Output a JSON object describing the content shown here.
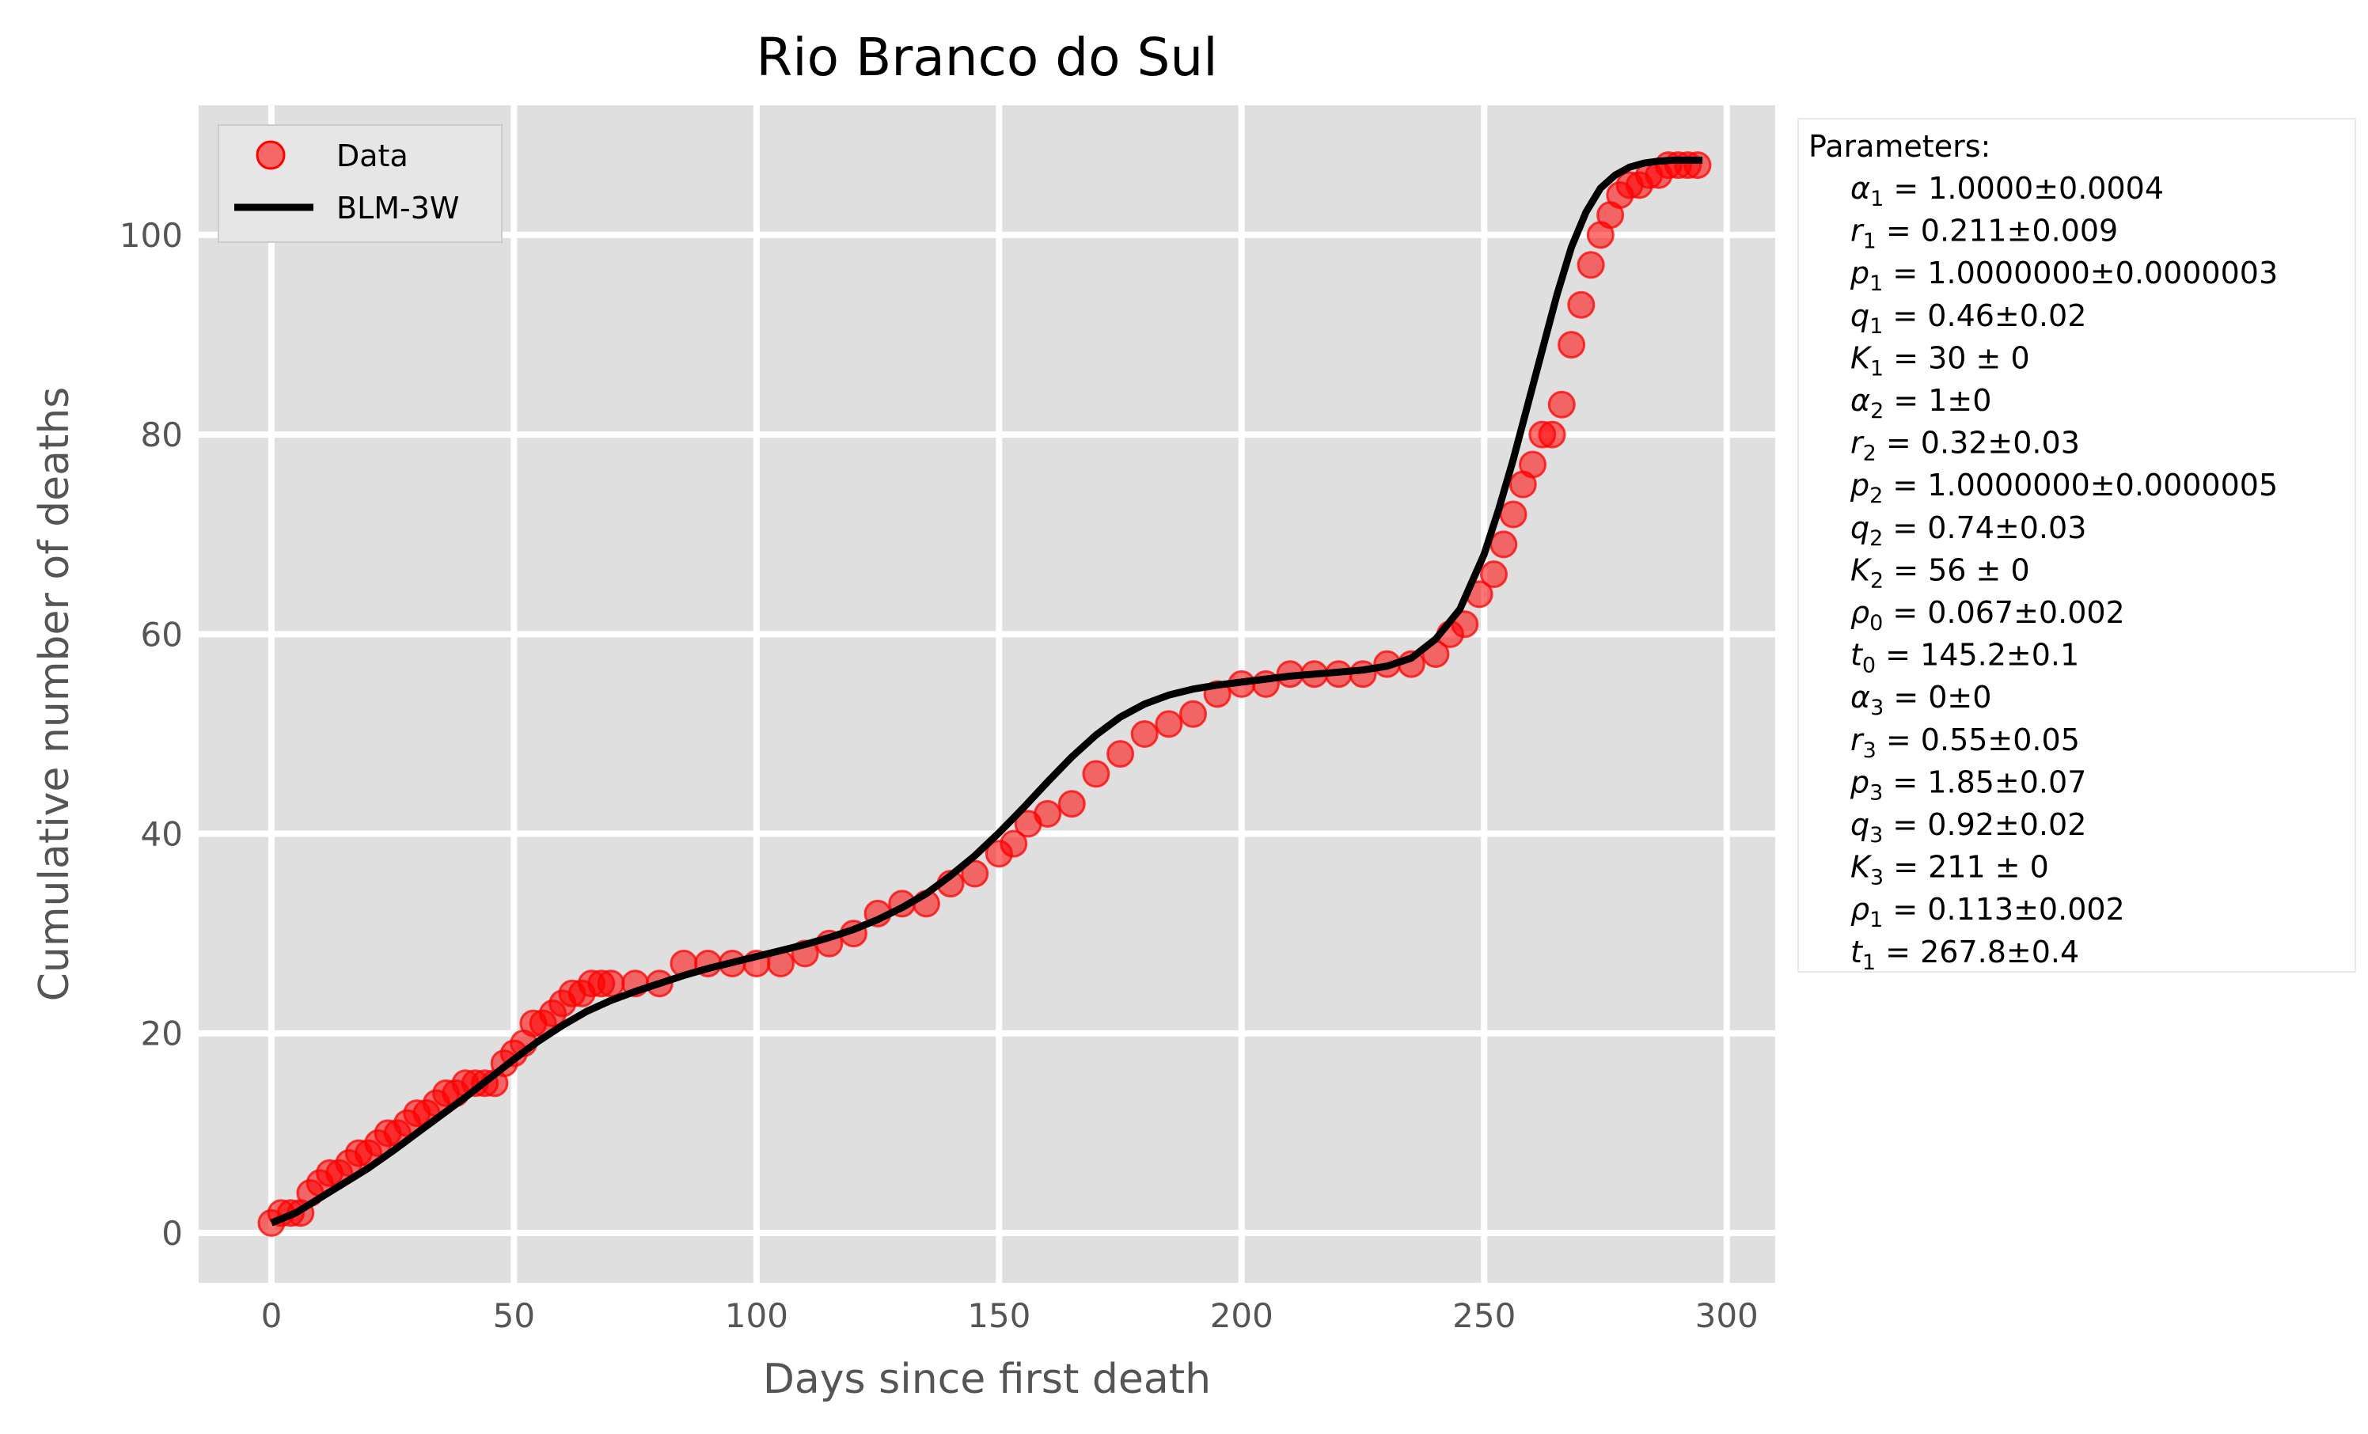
{
  "colors": {
    "plot_bg": "#dfdfdf",
    "grid": "#ffffff",
    "data_marker": "#ff0000",
    "fit_line": "#000000",
    "label": "#555555"
  },
  "chart_data": {
    "type": "scatter",
    "title": "Rio Branco do Sul",
    "xlabel": "Days since first death",
    "ylabel": "Cumulative number of deaths",
    "xlim": [
      -15,
      310
    ],
    "ylim": [
      -5,
      113
    ],
    "xticks": [
      0,
      50,
      100,
      150,
      200,
      250,
      300
    ],
    "yticks": [
      0,
      20,
      40,
      60,
      80,
      100
    ],
    "grid": true,
    "legend_placement": "top-left",
    "legend": [
      {
        "label": "Data",
        "marker": "circle",
        "color": "#ff0000"
      },
      {
        "label": "BLM-3W",
        "marker": "line",
        "color": "#000000"
      }
    ],
    "series": [
      {
        "name": "Data",
        "kind": "points",
        "x": [
          0,
          2,
          4,
          6,
          8,
          10,
          12,
          14,
          16,
          18,
          20,
          22,
          24,
          26,
          28,
          30,
          32,
          34,
          36,
          38,
          40,
          42,
          44,
          46,
          48,
          50,
          52,
          54,
          56,
          58,
          60,
          62,
          64,
          66,
          68,
          70,
          75,
          80,
          85,
          90,
          95,
          100,
          105,
          110,
          115,
          120,
          125,
          130,
          135,
          140,
          145,
          150,
          153,
          156,
          160,
          165,
          170,
          175,
          180,
          185,
          190,
          195,
          200,
          205,
          210,
          215,
          220,
          225,
          230,
          235,
          240,
          243,
          246,
          249,
          252,
          254,
          256,
          258,
          260,
          262,
          264,
          266,
          268,
          270,
          272,
          274,
          276,
          278,
          280,
          282,
          284,
          286,
          288,
          290,
          292,
          294
        ],
        "y": [
          1,
          2,
          2,
          2,
          4,
          5,
          6,
          6,
          7,
          8,
          8,
          9,
          10,
          10,
          11,
          12,
          12,
          13,
          14,
          14,
          15,
          15,
          15,
          15,
          17,
          18,
          19,
          21,
          21,
          22,
          23,
          24,
          24,
          25,
          25,
          25,
          25,
          25,
          27,
          27,
          27,
          27,
          27,
          28,
          29,
          30,
          32,
          33,
          33,
          35,
          36,
          38,
          39,
          41,
          42,
          43,
          46,
          48,
          50,
          51,
          52,
          54,
          55,
          55,
          56,
          56,
          56,
          56,
          57,
          57,
          58,
          60,
          61,
          64,
          66,
          69,
          72,
          75,
          77,
          80,
          80,
          83,
          89,
          93,
          97,
          100,
          102,
          104,
          105,
          105,
          106,
          106,
          107,
          107,
          107,
          107
        ]
      },
      {
        "name": "BLM-3W",
        "kind": "line",
        "x": [
          0,
          5,
          10,
          15,
          20,
          25,
          30,
          35,
          40,
          45,
          50,
          55,
          60,
          65,
          70,
          75,
          80,
          85,
          90,
          95,
          100,
          105,
          110,
          115,
          120,
          125,
          130,
          135,
          140,
          145,
          150,
          155,
          160,
          165,
          170,
          175,
          180,
          185,
          190,
          195,
          200,
          205,
          210,
          215,
          220,
          225,
          230,
          235,
          240,
          245,
          250,
          253,
          256,
          259,
          262,
          265,
          268,
          271,
          274,
          277,
          280,
          283,
          286,
          289,
          292,
          295
        ],
        "y": [
          1,
          2,
          3.5,
          5,
          6.5,
          8.2,
          10,
          11.8,
          13.6,
          15.5,
          17.4,
          19.2,
          20.8,
          22.2,
          23.3,
          24.2,
          25,
          25.8,
          26.5,
          27.1,
          27.7,
          28.3,
          28.9,
          29.6,
          30.4,
          31.4,
          32.6,
          34,
          35.8,
          37.8,
          40.1,
          42.6,
          45.2,
          47.7,
          49.9,
          51.7,
          53,
          53.9,
          54.5,
          54.9,
          55.2,
          55.5,
          55.8,
          56,
          56.2,
          56.4,
          56.8,
          57.6,
          59.5,
          62.5,
          68,
          72.5,
          77.5,
          83,
          88.5,
          94,
          98.8,
          102.3,
          104.7,
          106,
          106.8,
          107.2,
          107.4,
          107.5,
          107.5,
          107.5
        ]
      }
    ]
  },
  "parameters": {
    "header": "Parameters:",
    "lines": [
      {
        "sym": "α",
        "sub": "1",
        "val": "1.0000±0.0004"
      },
      {
        "sym": "r",
        "sub": "1",
        "val": "0.211±0.009"
      },
      {
        "sym": "p",
        "sub": "1",
        "val": "1.0000000±0.0000003"
      },
      {
        "sym": "q",
        "sub": "1",
        "val": "0.46±0.02"
      },
      {
        "sym": "K",
        "sub": "1",
        "val": "30 ± 0"
      },
      {
        "sym": "α",
        "sub": "2",
        "val": "1±0"
      },
      {
        "sym": "r",
        "sub": "2",
        "val": "0.32±0.03"
      },
      {
        "sym": "p",
        "sub": "2",
        "val": "1.0000000±0.0000005"
      },
      {
        "sym": "q",
        "sub": "2",
        "val": "0.74±0.03"
      },
      {
        "sym": "K",
        "sub": "2",
        "val": "56 ± 0"
      },
      {
        "sym": "ρ",
        "sub": "0",
        "val": "0.067±0.002"
      },
      {
        "sym": "t",
        "sub": "0",
        "val": "145.2±0.1"
      },
      {
        "sym": "α",
        "sub": "3",
        "val": "0±0"
      },
      {
        "sym": "r",
        "sub": "3",
        "val": "0.55±0.05"
      },
      {
        "sym": "p",
        "sub": "3",
        "val": "1.85±0.07"
      },
      {
        "sym": "q",
        "sub": "3",
        "val": "0.92±0.02"
      },
      {
        "sym": "K",
        "sub": "3",
        "val": "211 ± 0"
      },
      {
        "sym": "ρ",
        "sub": "1",
        "val": "0.113±0.002"
      },
      {
        "sym": "t",
        "sub": "1",
        "val": "267.8±0.4"
      }
    ]
  }
}
